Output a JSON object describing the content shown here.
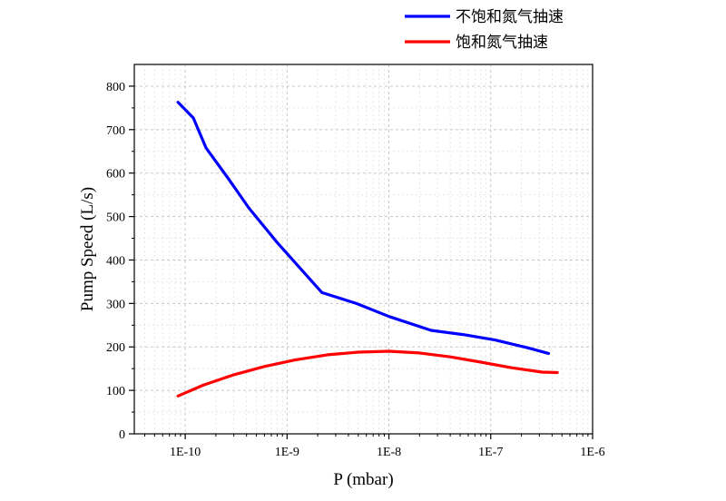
{
  "chart_data": {
    "type": "line",
    "xlabel": "P (mbar)",
    "ylabel": "Pump Speed (L/s)",
    "x_scale": "log",
    "xlim": [
      "1E-10.6",
      "1E-6"
    ],
    "ylim": [
      0,
      850
    ],
    "x_ticks": [
      {
        "value": 1e-10,
        "label": "1E-10"
      },
      {
        "value": 1e-09,
        "label": "1E-9"
      },
      {
        "value": 1e-08,
        "label": "1E-8"
      },
      {
        "value": 1e-07,
        "label": "1E-7"
      },
      {
        "value": 1e-06,
        "label": "1E-6"
      }
    ],
    "y_ticks": [
      0,
      100,
      200,
      300,
      400,
      500,
      600,
      700,
      800
    ],
    "grid": true,
    "legend_position": "top-right",
    "series": [
      {
        "name": "不饱和氮气抽速",
        "color": "#0000ff",
        "x": [
          "8.5E-11",
          "1.2E-10",
          "1.6E-10",
          "2.6E-10",
          "4.2E-10",
          "8.0E-10",
          "2.2E-9",
          "4.8E-9",
          "1.0E-8",
          "2.6E-8",
          "5.5E-8",
          "1.1E-7",
          "2.3E-7",
          "3.7E-7"
        ],
        "y": [
          763,
          727,
          658,
          590,
          520,
          440,
          325,
          300,
          270,
          238,
          228,
          216,
          198,
          185
        ]
      },
      {
        "name": "饱和氮气抽速",
        "color": "#ff0000",
        "x": [
          "8.5E-11",
          "1.5E-10",
          "3.0E-10",
          "6.0E-10",
          "1.2E-9",
          "2.5E-9",
          "5.0E-9",
          "1.0E-8",
          "2.0E-8",
          "4.0E-8",
          "8.0E-8",
          "1.6E-7",
          "3.2E-7",
          "4.5E-7"
        ],
        "y": [
          87,
          112,
          136,
          155,
          170,
          182,
          188,
          190,
          186,
          177,
          165,
          152,
          142,
          141
        ]
      }
    ]
  }
}
